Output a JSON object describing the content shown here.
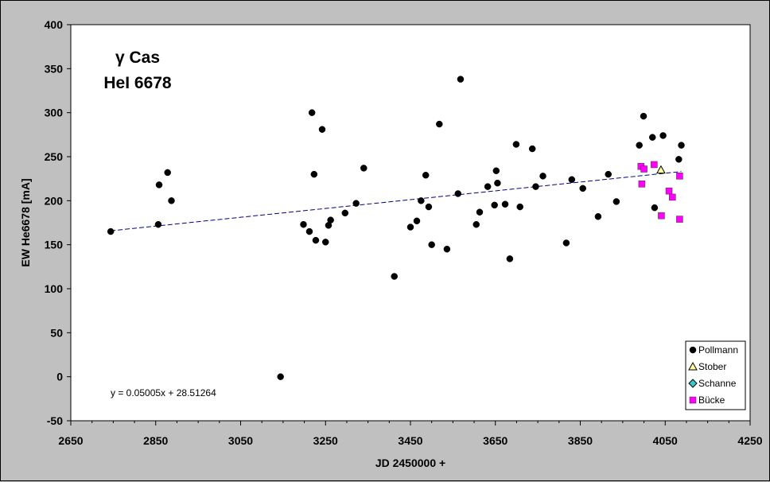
{
  "chart_data": {
    "type": "scatter",
    "title_lines": [
      "γ Cas",
      "HeI 6678"
    ],
    "xlabel": "JD 2450000 +",
    "ylabel": "EW He6678 [mA]",
    "xlim": [
      2650,
      4250
    ],
    "ylim": [
      -50,
      400
    ],
    "x_ticks": [
      2650,
      2850,
      3050,
      3250,
      3450,
      3650,
      3850,
      4050,
      4250
    ],
    "y_ticks": [
      -50,
      0,
      50,
      100,
      150,
      200,
      250,
      300,
      350,
      400
    ],
    "grid": false,
    "legend_position": "bottom-right",
    "series": [
      {
        "name": "Pollmann",
        "marker": "circle",
        "color": "#000000",
        "points": [
          [
            2744,
            165
          ],
          [
            2856,
            173
          ],
          [
            2858,
            218
          ],
          [
            2878,
            232
          ],
          [
            2887,
            200
          ],
          [
            3144,
            0
          ],
          [
            3198,
            173
          ],
          [
            3212,
            165
          ],
          [
            3218,
            300
          ],
          [
            3223,
            230
          ],
          [
            3227,
            155
          ],
          [
            3242,
            281
          ],
          [
            3250,
            153
          ],
          [
            3257,
            172
          ],
          [
            3262,
            178
          ],
          [
            3296,
            186
          ],
          [
            3322,
            197
          ],
          [
            3340,
            237
          ],
          [
            3412,
            114
          ],
          [
            3450,
            170
          ],
          [
            3465,
            177
          ],
          [
            3475,
            200
          ],
          [
            3486,
            229
          ],
          [
            3493,
            193
          ],
          [
            3500,
            150
          ],
          [
            3518,
            287
          ],
          [
            3536,
            145
          ],
          [
            3562,
            208
          ],
          [
            3568,
            338
          ],
          [
            3605,
            173
          ],
          [
            3613,
            187
          ],
          [
            3632,
            216
          ],
          [
            3648,
            195
          ],
          [
            3652,
            234
          ],
          [
            3655,
            220
          ],
          [
            3673,
            196
          ],
          [
            3684,
            134
          ],
          [
            3699,
            264
          ],
          [
            3708,
            193
          ],
          [
            3737,
            259
          ],
          [
            3745,
            216
          ],
          [
            3762,
            228
          ],
          [
            3817,
            152
          ],
          [
            3830,
            224
          ],
          [
            3856,
            214
          ],
          [
            3892,
            182
          ],
          [
            3916,
            230
          ],
          [
            3935,
            199
          ],
          [
            3989,
            263
          ],
          [
            3999,
            296
          ],
          [
            4020,
            272
          ],
          [
            4025,
            192
          ],
          [
            4045,
            274
          ],
          [
            4082,
            247
          ],
          [
            4088,
            263
          ]
        ]
      },
      {
        "name": "Stober",
        "marker": "triangle",
        "color": "#ffff99",
        "points": [
          [
            4040,
            235
          ]
        ]
      },
      {
        "name": "Schanne",
        "marker": "diamond",
        "color": "#33cccc",
        "points": []
      },
      {
        "name": "Bücke",
        "marker": "square",
        "color": "#ff00ff",
        "points": [
          [
            3993,
            239
          ],
          [
            3995,
            219
          ],
          [
            4000,
            236
          ],
          [
            4024,
            241
          ],
          [
            4041,
            183
          ],
          [
            4059,
            211
          ],
          [
            4067,
            204
          ],
          [
            4084,
            179
          ],
          [
            4084,
            228
          ]
        ]
      }
    ],
    "trendline": {
      "equation": "y = 0.05005x + 28.51264",
      "slope": 0.05005,
      "intercept": 28.51264,
      "x_range": [
        2744,
        4088
      ],
      "color": "#000080",
      "style": "dashed"
    }
  }
}
